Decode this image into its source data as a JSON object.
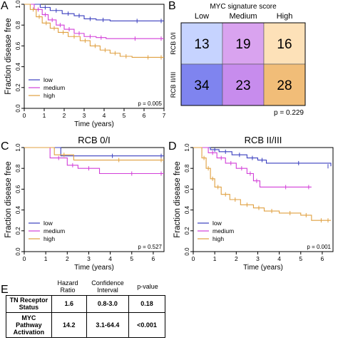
{
  "colors": {
    "low": "#3a3fbf",
    "medium": "#d23fd8",
    "high": "#e0a040",
    "heat_low_top": "#c6d3ff",
    "heat_medium_top": "#d9a3ef",
    "heat_high_top": "#fde1b8",
    "heat_low_bottom": "#7f84ef",
    "heat_medium_bottom": "#c78ced",
    "heat_high_bottom": "#f1bd78"
  },
  "panels": {
    "a": "A",
    "b": "B",
    "c": "C",
    "d": "D",
    "e": "E"
  },
  "chart_data": [
    {
      "id": "A",
      "type": "line",
      "title": "",
      "xlabel": "Time (years)",
      "ylabel": "Fraction disease free",
      "xlim": [
        0,
        7
      ],
      "ylim": [
        0,
        1
      ],
      "xticks": [
        "0",
        "1",
        "2",
        "3",
        "4",
        "5",
        "6",
        "7"
      ],
      "yticks": [
        "0.0",
        "0.2",
        "0.4",
        "0.6",
        "0.8",
        "1.0"
      ],
      "legend": [
        "low",
        "medium",
        "high"
      ],
      "legend_position": "bottom-left",
      "annotation": "p = 0.005",
      "series": [
        {
          "name": "low",
          "x": [
            0,
            0.8,
            1.3,
            1.9,
            2.5,
            3.0,
            3.6,
            4.3,
            7
          ],
          "y": [
            1.0,
            0.97,
            0.94,
            0.91,
            0.89,
            0.86,
            0.85,
            0.84,
            0.84
          ]
        },
        {
          "name": "medium",
          "x": [
            0,
            0.5,
            0.9,
            1.2,
            1.6,
            2.0,
            2.5,
            3.0,
            3.6,
            4.1,
            7
          ],
          "y": [
            1.0,
            0.95,
            0.9,
            0.85,
            0.8,
            0.76,
            0.72,
            0.69,
            0.68,
            0.67,
            0.67
          ]
        },
        {
          "name": "high",
          "x": [
            0,
            0.3,
            0.6,
            0.9,
            1.3,
            1.7,
            2.2,
            2.8,
            3.3,
            3.8,
            4.3,
            4.8,
            5.4,
            7
          ],
          "y": [
            1.0,
            0.95,
            0.88,
            0.82,
            0.77,
            0.73,
            0.69,
            0.65,
            0.6,
            0.56,
            0.53,
            0.5,
            0.49,
            0.49
          ]
        }
      ]
    },
    {
      "id": "B",
      "type": "heatmap",
      "title": "MYC signature score",
      "columns": [
        "Low",
        "Medium",
        "High"
      ],
      "rows": [
        "RCB 0/I",
        "RCB II/III"
      ],
      "values": [
        [
          13,
          19,
          16
        ],
        [
          34,
          23,
          28
        ]
      ],
      "annotation": "p = 0.229"
    },
    {
      "id": "C",
      "type": "line",
      "title": "RCB 0/I",
      "xlabel": "Time (years)",
      "ylabel": "Fraction disease free",
      "xlim": [
        0,
        6.5
      ],
      "ylim": [
        0,
        1
      ],
      "xticks": [
        "0",
        "1",
        "2",
        "3",
        "4",
        "5",
        "6"
      ],
      "yticks": [
        "0.0",
        "0.2",
        "0.4",
        "0.6",
        "0.8",
        "1.0"
      ],
      "legend": [
        "low",
        "medium",
        "high"
      ],
      "legend_position": "bottom-left",
      "annotation": "p = 0.527",
      "series": [
        {
          "name": "low",
          "x": [
            0,
            1.7,
            6.5
          ],
          "y": [
            1.0,
            0.92,
            0.92
          ]
        },
        {
          "name": "medium",
          "x": [
            0,
            1.2,
            2.0,
            2.5,
            3.5,
            6.5
          ],
          "y": [
            1.0,
            0.9,
            0.83,
            0.8,
            0.75,
            0.75
          ]
        },
        {
          "name": "high",
          "x": [
            0,
            1.4,
            2.3,
            6.5
          ],
          "y": [
            1.0,
            0.93,
            0.88,
            0.88
          ]
        }
      ]
    },
    {
      "id": "D",
      "type": "line",
      "title": "RCB II/III",
      "xlabel": "Time (years)",
      "ylabel": "Fraction disease free",
      "xlim": [
        0,
        6.5
      ],
      "ylim": [
        0,
        1
      ],
      "xticks": [
        "0",
        "1",
        "2",
        "3",
        "4",
        "5",
        "6"
      ],
      "yticks": [
        "0.0",
        "0.2",
        "0.4",
        "0.6",
        "0.8",
        "1.0"
      ],
      "legend": [
        "low",
        "medium",
        "high"
      ],
      "legend_position": "bottom-left",
      "annotation": "p = 0.001",
      "series": [
        {
          "name": "low",
          "x": [
            0,
            0.8,
            1.2,
            1.8,
            2.5,
            3.0,
            3.4,
            6.4
          ],
          "y": [
            1.0,
            0.98,
            0.96,
            0.93,
            0.9,
            0.88,
            0.85,
            0.82
          ]
        },
        {
          "name": "medium",
          "x": [
            0,
            0.7,
            1.1,
            1.5,
            2.0,
            2.5,
            2.8,
            3.1,
            5.5
          ],
          "y": [
            1.0,
            0.95,
            0.9,
            0.85,
            0.8,
            0.75,
            0.68,
            0.62,
            0.62
          ]
        },
        {
          "name": "high",
          "x": [
            0,
            0.4,
            0.6,
            0.8,
            1.0,
            1.3,
            1.7,
            2.2,
            2.8,
            3.3,
            4.0,
            5.0,
            5.5,
            6.4
          ],
          "y": [
            1.0,
            0.9,
            0.8,
            0.7,
            0.62,
            0.55,
            0.5,
            0.45,
            0.42,
            0.39,
            0.37,
            0.35,
            0.3,
            0.3
          ]
        }
      ]
    },
    {
      "id": "E",
      "type": "table",
      "columns": [
        "",
        "Hazard Ratio",
        "Confidence Interval",
        "p-value"
      ],
      "rows": [
        [
          "TN Receptor Status",
          "1.6",
          "0.8-3.0",
          "0.18"
        ],
        [
          "MYC Pathway Activation",
          "14.2",
          "3.1-64.4",
          "<0.001"
        ]
      ]
    }
  ]
}
